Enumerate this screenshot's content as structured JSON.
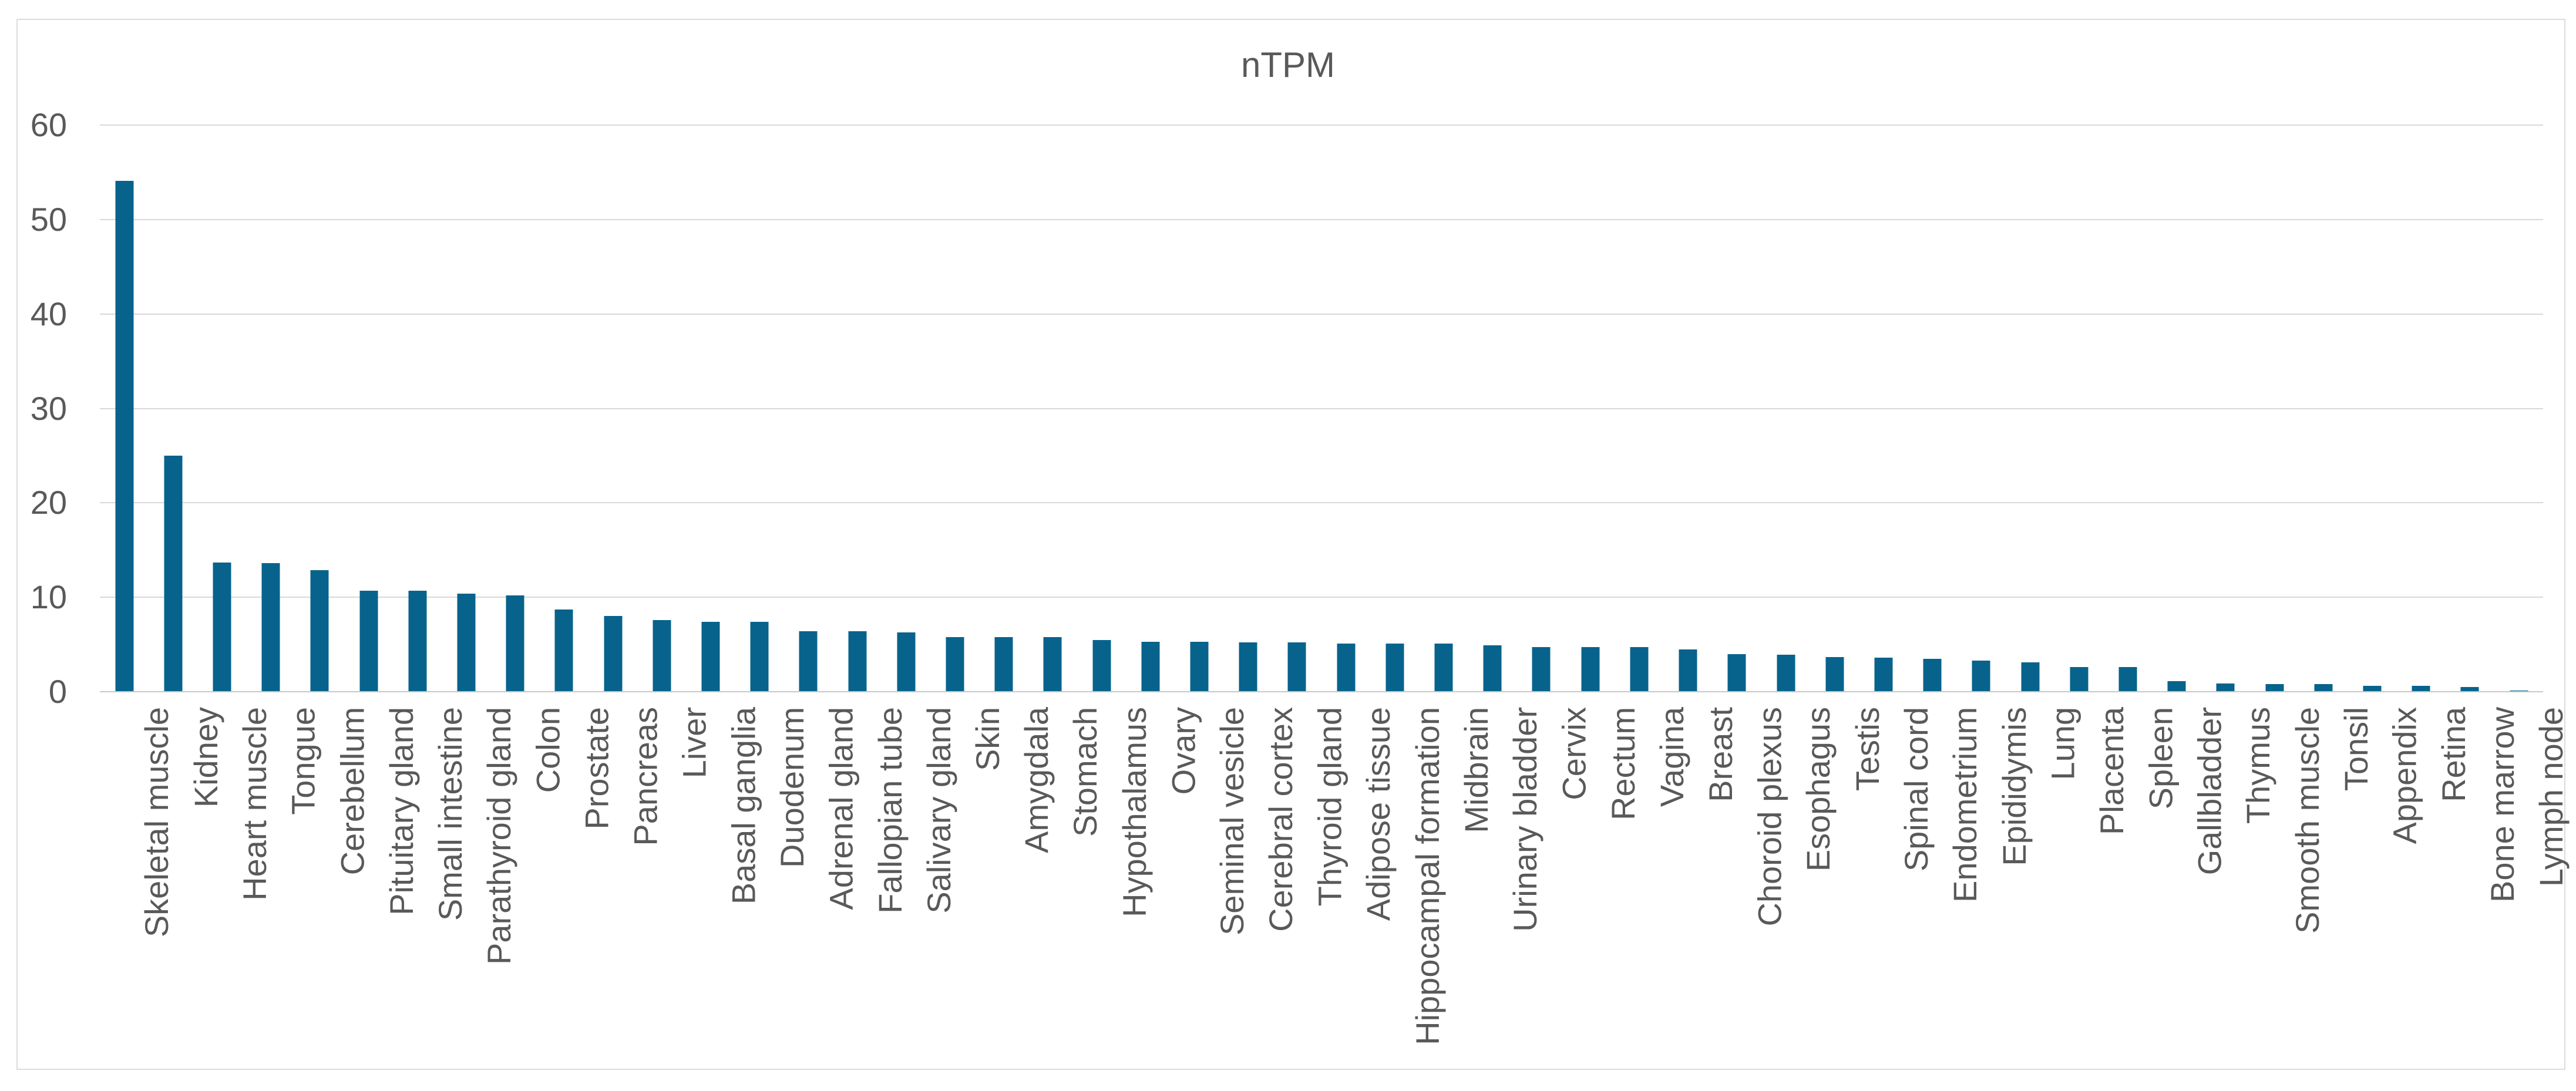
{
  "chart_data": {
    "type": "bar",
    "title": "nTPM",
    "categories": [
      "Skeletal muscle",
      "Kidney",
      "Heart muscle",
      "Tongue",
      "Cerebellum",
      "Pituitary gland",
      "Small intestine",
      "Parathyroid gland",
      "Colon",
      "Prostate",
      "Pancreas",
      "Liver",
      "Basal ganglia",
      "Duodenum",
      "Adrenal gland",
      "Fallopian tube",
      "Salivary gland",
      "Skin",
      "Amygdala",
      "Stomach",
      "Hypothalamus",
      "Ovary",
      "Seminal vesicle",
      "Cerebral cortex",
      "Thyroid gland",
      "Adipose tissue",
      "Hippocampal formation",
      "Midbrain",
      "Urinary bladder",
      "Cervix",
      "Rectum",
      "Vagina",
      "Breast",
      "Choroid plexus",
      "Esophagus",
      "Testis",
      "Spinal cord",
      "Endometrium",
      "Epididymis",
      "Lung",
      "Placenta",
      "Spleen",
      "Gallbladder",
      "Thymus",
      "Smooth muscle",
      "Tonsil",
      "Appendix",
      "Retina",
      "Bone marrow",
      "Lymph node"
    ],
    "values": [
      54.1,
      25.0,
      13.7,
      13.6,
      12.9,
      10.7,
      10.7,
      10.4,
      10.2,
      8.7,
      8.0,
      7.6,
      7.4,
      7.4,
      6.4,
      6.4,
      6.3,
      5.8,
      5.8,
      5.8,
      5.5,
      5.3,
      5.3,
      5.2,
      5.2,
      5.1,
      5.1,
      5.1,
      4.9,
      4.7,
      4.7,
      4.7,
      4.5,
      4.0,
      3.9,
      3.7,
      3.6,
      3.5,
      3.3,
      3.1,
      2.6,
      2.6,
      1.1,
      0.9,
      0.8,
      0.8,
      0.6,
      0.6,
      0.5,
      0.15
    ],
    "xlabel": "",
    "ylabel": "",
    "ylim": [
      0,
      60
    ],
    "yticks": [
      0,
      10,
      20,
      30,
      40,
      50,
      60
    ],
    "grid": true,
    "legend": "none",
    "colors": {
      "bar": "#07638c",
      "grid": "#d9d9d9",
      "axis": "#c8c8c8",
      "text": "#595959",
      "frame": "#dcdcdc"
    }
  }
}
